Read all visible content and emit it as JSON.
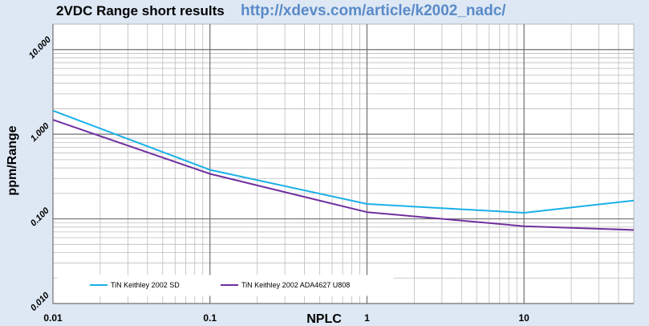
{
  "header": {
    "title": "2VDC Range short results",
    "link_text": "http://xdevs.com/article/k2002_nadc/"
  },
  "chart_data": {
    "type": "line",
    "title": "2VDC Range short results",
    "xlabel": "NPLC",
    "ylabel": "ppm/Range",
    "x_scale": "log",
    "y_scale": "log",
    "xlim": [
      0.01,
      50
    ],
    "ylim": [
      0.01,
      20
    ],
    "x_ticks": [
      0.01,
      0.1,
      1,
      10
    ],
    "x_tick_labels": [
      "0.01",
      "0.1",
      "1",
      "10"
    ],
    "y_ticks": [
      0.01,
      0.1,
      1,
      10
    ],
    "y_tick_labels": [
      "0.010",
      "0.100",
      "1.000",
      "10.000"
    ],
    "grid": true,
    "legend_position": "bottom-left",
    "series": [
      {
        "name": "TiN Keithley 2002 SD",
        "color": "#1ab0e8",
        "x": [
          0.01,
          0.1,
          1,
          10,
          50
        ],
        "y": [
          1.9,
          0.38,
          0.15,
          0.118,
          0.165
        ]
      },
      {
        "name": "TiN Keithley 2002 ADA4627 U808",
        "color": "#7030a0",
        "x": [
          0.01,
          0.1,
          1,
          10,
          50
        ],
        "y": [
          1.48,
          0.34,
          0.12,
          0.082,
          0.074
        ]
      }
    ]
  }
}
